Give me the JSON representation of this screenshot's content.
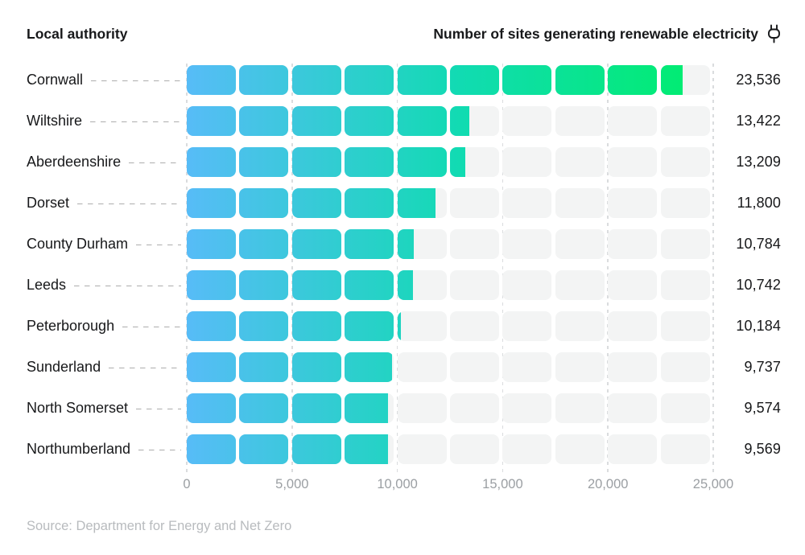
{
  "header": {
    "left_label": "Local authority",
    "right_label": "Number of sites generating renewable electricity",
    "icon": "plug-icon"
  },
  "chart_data": {
    "type": "bar",
    "orientation": "horizontal",
    "title": "Number of sites generating renewable electricity",
    "xlabel": "Number of sites generating renewable electricity",
    "ylabel": "Local authority",
    "categories": [
      "Cornwall",
      "Wiltshire",
      "Aberdeenshire",
      "Dorset",
      "County Durham",
      "Leeds",
      "Peterborough",
      "Sunderland",
      "North Somerset",
      "Northumberland"
    ],
    "values": [
      23536,
      13422,
      13209,
      11800,
      10784,
      10742,
      10184,
      9737,
      9574,
      9569
    ],
    "value_labels": [
      "23,536",
      "13,422",
      "13,209",
      "11,800",
      "10,784",
      "10,742",
      "10,184",
      "9,737",
      "9,574",
      "9,569"
    ],
    "xlim": [
      0,
      25000
    ],
    "x_ticks": [
      0,
      5000,
      10000,
      15000,
      20000,
      25000
    ],
    "x_tick_labels": [
      "0",
      "5,000",
      "10,000",
      "15,000",
      "20,000",
      "25,000"
    ],
    "segment_interval": 2500,
    "grid": "vertical-dashed",
    "legend": "none",
    "colors": {
      "gradient_start": "#57bcf7",
      "gradient_mid": "#11dbb2",
      "gradient_end": "#00ee6b",
      "track": "#f3f4f4",
      "gridline": "#dadcde",
      "leader_dash": "#adadad"
    }
  },
  "footer": {
    "source": "Source: Department for Energy and Net Zero"
  }
}
